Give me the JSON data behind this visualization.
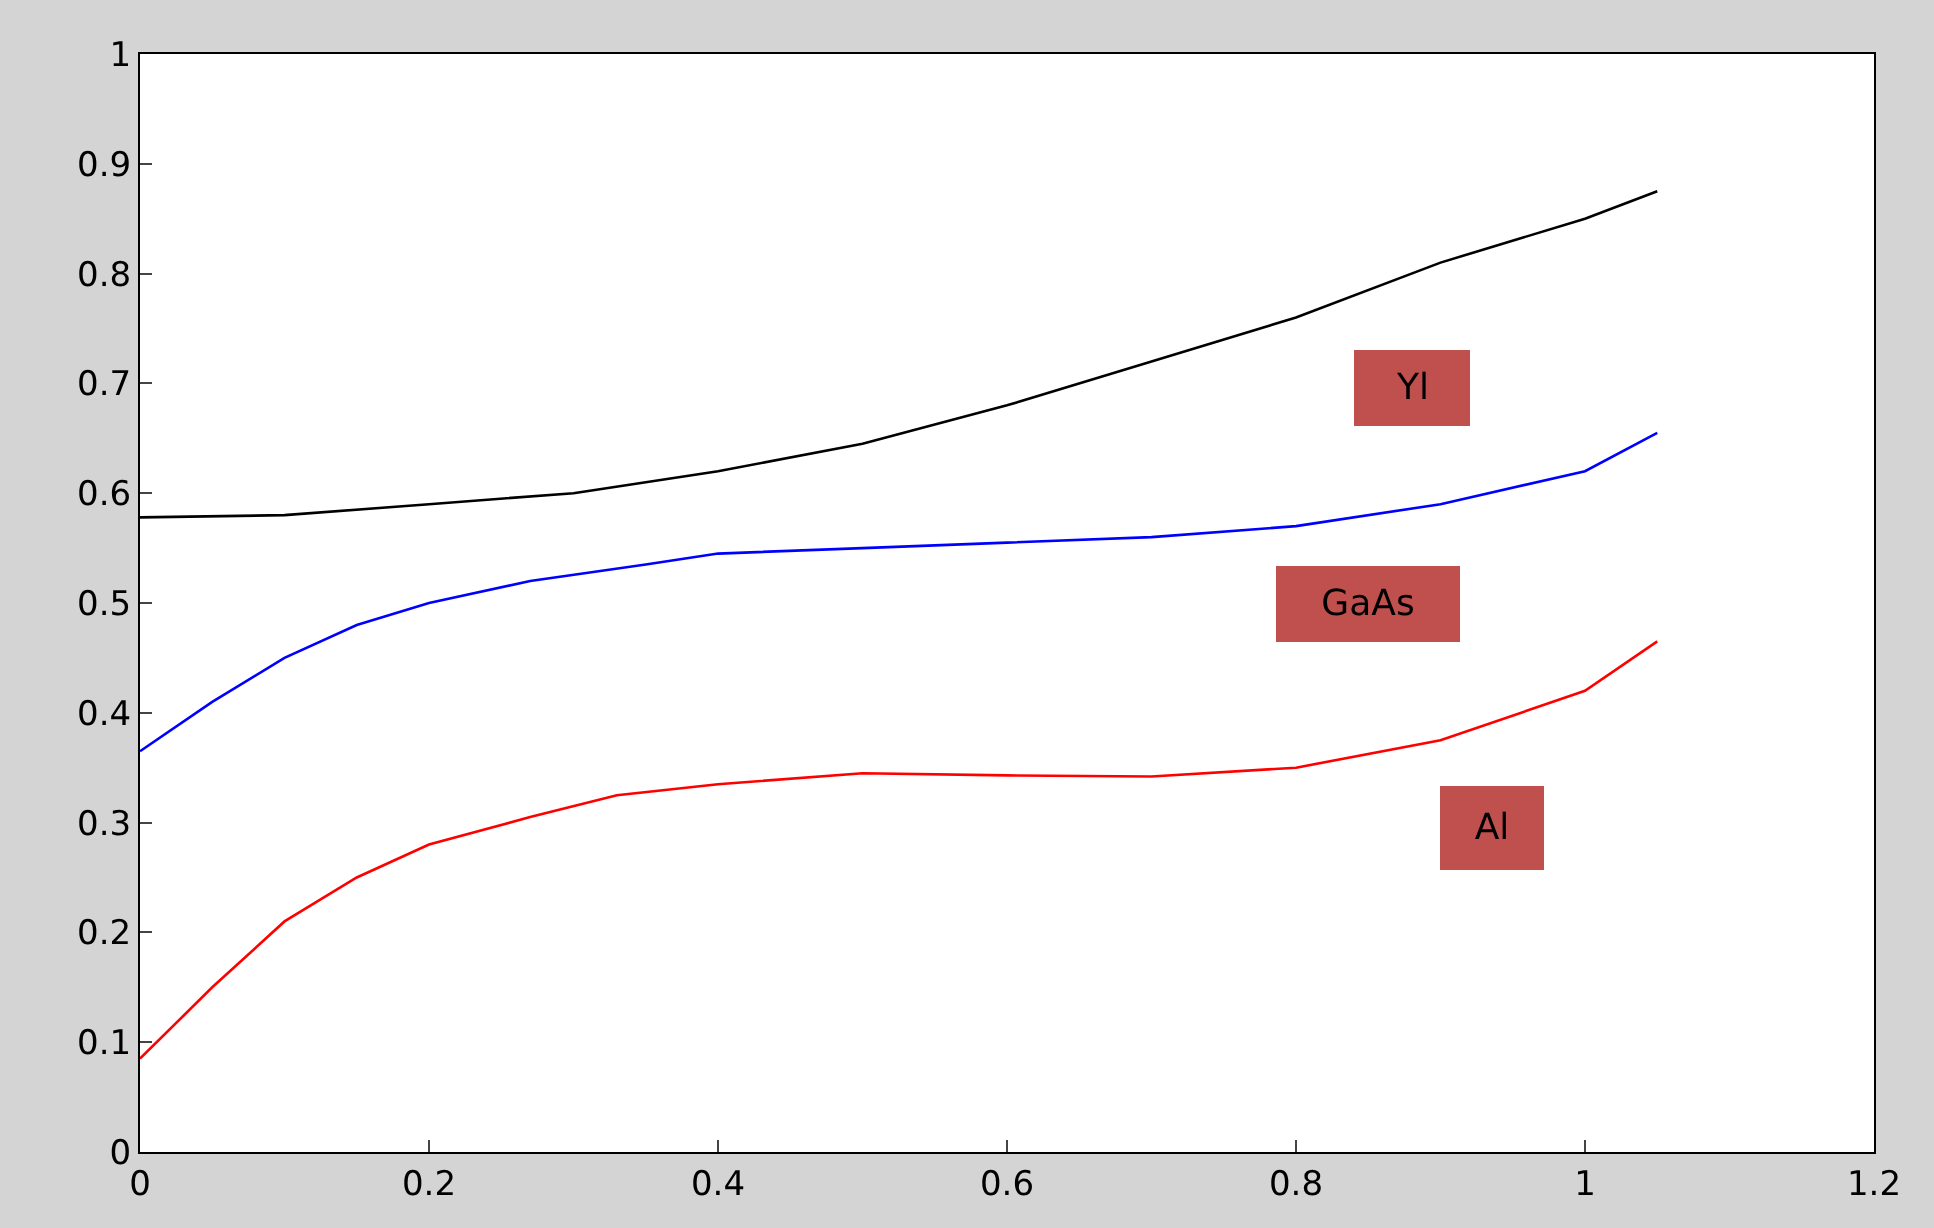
{
  "chart_data": {
    "type": "line",
    "xlim": [
      0,
      1.2
    ],
    "xticks": [
      0,
      0.2,
      0.4,
      0.6,
      0.8,
      1,
      1.2
    ],
    "ylim": [
      0,
      1
    ],
    "yticks": [
      0,
      0.1,
      0.2,
      0.3,
      0.4,
      0.5,
      0.6,
      0.7,
      0.8,
      0.9,
      1
    ],
    "grid": false,
    "legend": false,
    "marker": "none",
    "line_style": "solid",
    "series": [
      {
        "name": "Yl",
        "color": "#000000",
        "x": [
          0,
          0.1,
          0.2,
          0.3,
          0.4,
          0.5,
          0.6,
          0.7,
          0.8,
          0.9,
          1.0,
          1.05
        ],
        "values": [
          0.578,
          0.58,
          0.59,
          0.6,
          0.62,
          0.645,
          0.68,
          0.72,
          0.76,
          0.81,
          0.85,
          0.875
        ]
      },
      {
        "name": "GaAs",
        "color": "#0000ff",
        "x": [
          0,
          0.05,
          0.1,
          0.15,
          0.2,
          0.27,
          0.35,
          0.4,
          0.5,
          0.6,
          0.7,
          0.8,
          0.9,
          1.0,
          1.05
        ],
        "values": [
          0.365,
          0.41,
          0.45,
          0.48,
          0.5,
          0.52,
          0.535,
          0.545,
          0.55,
          0.555,
          0.56,
          0.57,
          0.59,
          0.62,
          0.655
        ]
      },
      {
        "name": "Al",
        "color": "#ff0000",
        "x": [
          0,
          0.05,
          0.1,
          0.15,
          0.2,
          0.27,
          0.33,
          0.4,
          0.5,
          0.6,
          0.7,
          0.8,
          0.9,
          1.0,
          1.05
        ],
        "values": [
          0.085,
          0.15,
          0.21,
          0.25,
          0.28,
          0.305,
          0.325,
          0.335,
          0.345,
          0.343,
          0.342,
          0.35,
          0.375,
          0.42,
          0.465
        ]
      }
    ]
  }
}
